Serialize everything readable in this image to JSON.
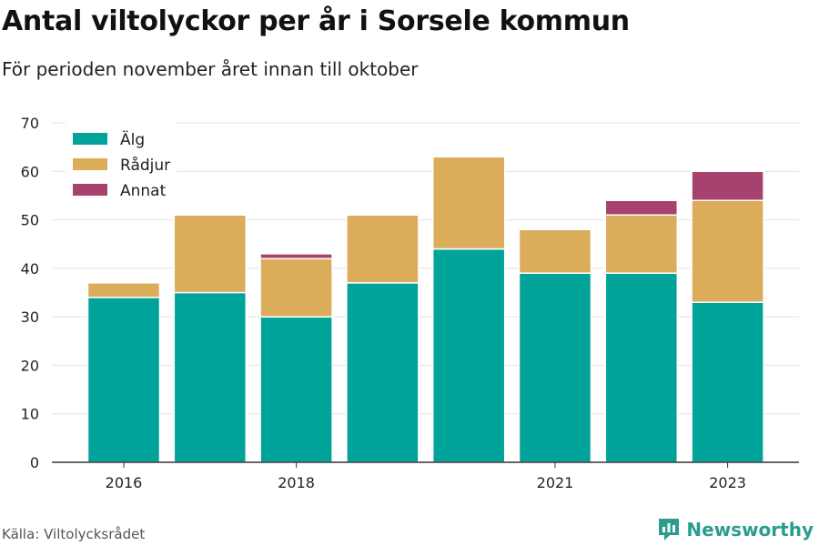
{
  "title": "Antal viltolyckor per år i Sorsele kommun",
  "subtitle": "För perioden november året innan till oktober",
  "source": "Källa: Viltolycksrådet",
  "brand": {
    "name": "Newsworthy",
    "icon": "newsworthy-logo-icon",
    "color": "#2a9d8f"
  },
  "chart_data": {
    "type": "bar",
    "stacked": true,
    "categories": [
      "2016",
      "2017",
      "2018",
      "2019",
      "2020",
      "2021",
      "2022",
      "2023"
    ],
    "x_tick_labels": [
      "2016",
      "",
      "2018",
      "",
      "",
      "2021",
      "",
      "2023"
    ],
    "series": [
      {
        "name": "Älg",
        "color": "#00a39a",
        "values": [
          34,
          35,
          30,
          37,
          44,
          39,
          39,
          33
        ]
      },
      {
        "name": "Rådjur",
        "color": "#dbad5b",
        "values": [
          3,
          16,
          12,
          14,
          19,
          9,
          12,
          21
        ]
      },
      {
        "name": "Annat",
        "color": "#a6426d",
        "values": [
          0,
          0,
          1,
          0,
          0,
          0,
          3,
          6
        ]
      }
    ],
    "ylim": [
      0,
      70
    ],
    "yticks": [
      0,
      10,
      20,
      30,
      40,
      50,
      60,
      70
    ],
    "grid": true,
    "legend": "top-left"
  }
}
